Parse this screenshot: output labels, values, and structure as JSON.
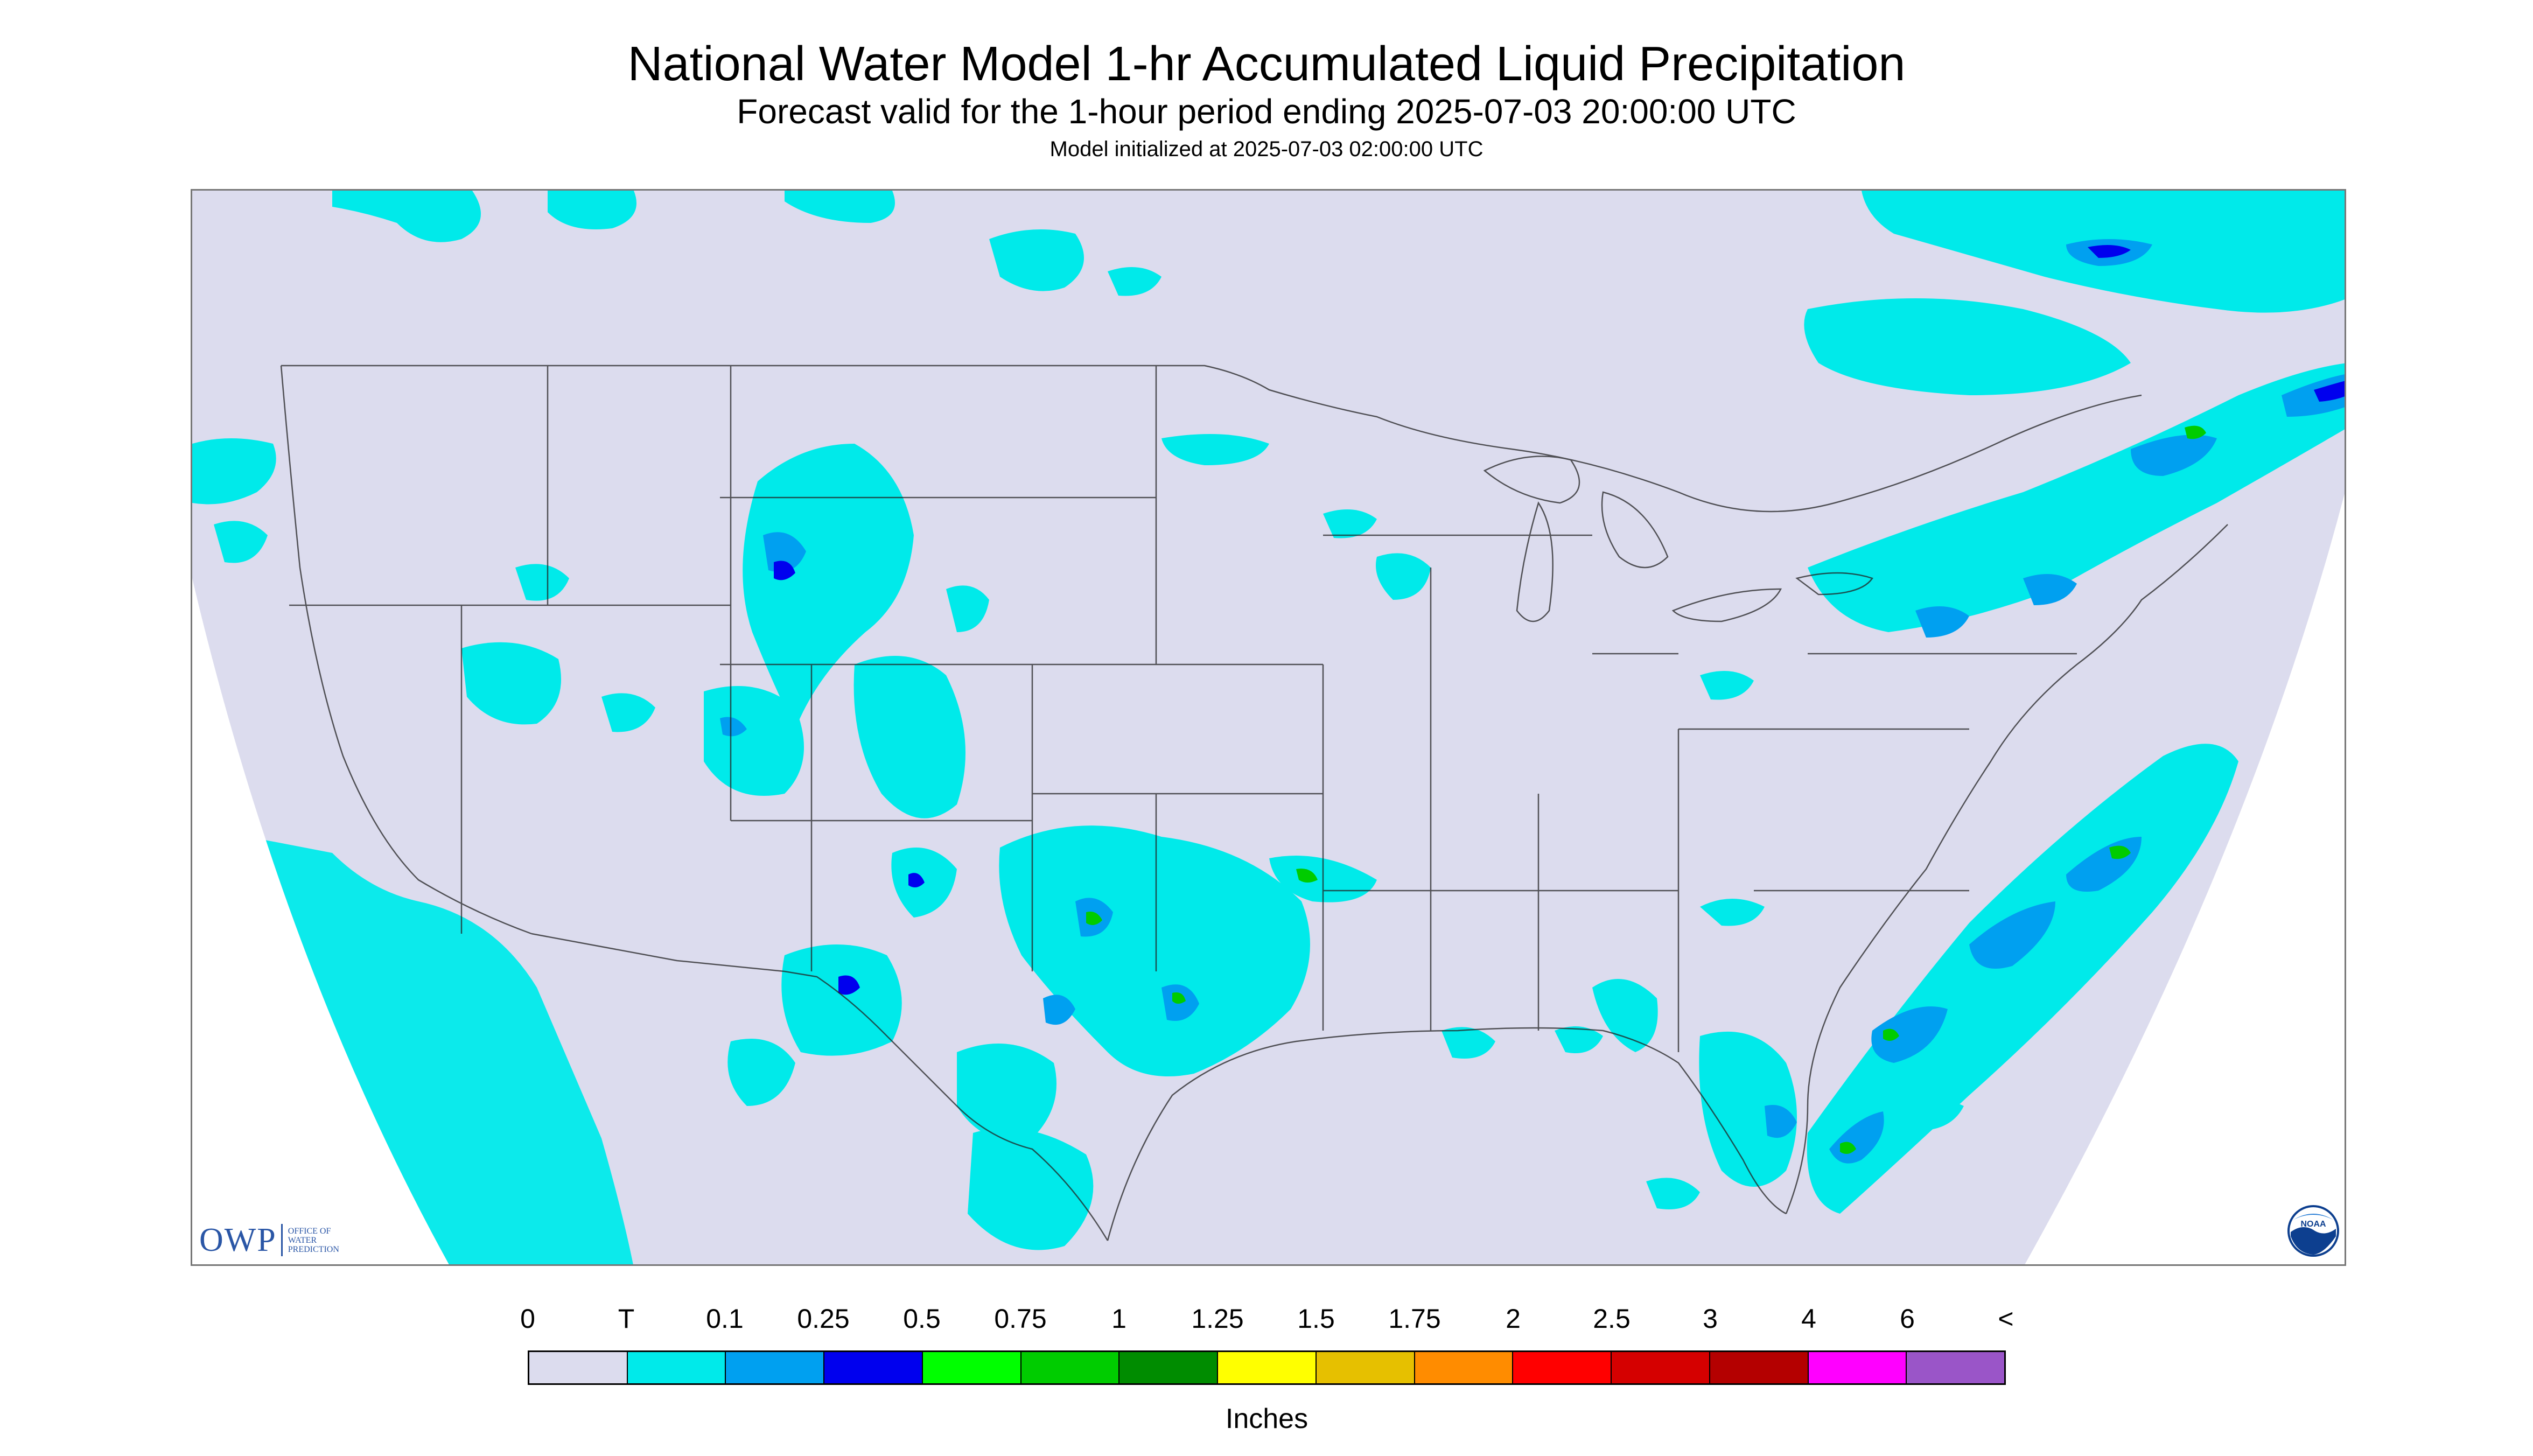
{
  "header": {
    "title": "National Water Model 1-hr Accumulated Liquid Precipitation",
    "subtitle": "Forecast valid for the 1-hour period ending 2025-07-03 20:00:00 UTC",
    "init_line": "Model initialized at 2025-07-03 02:00:00 UTC"
  },
  "legend": {
    "tick_labels": [
      "0",
      "T",
      "0.1",
      "0.25",
      "0.5",
      "0.75",
      "1",
      "1.25",
      "1.5",
      "1.75",
      "2",
      "2.5",
      "3",
      "4",
      "6",
      "<"
    ],
    "colors": [
      "#dcdcee",
      "#00eaea",
      "#00a0f0",
      "#0000ee",
      "#00ff00",
      "#00cc00",
      "#008c00",
      "#ffff00",
      "#e6c000",
      "#ff8c00",
      "#ff0000",
      "#d50000",
      "#b40000",
      "#ff00ff",
      "#9a55c8"
    ],
    "units": "Inches"
  },
  "logos": {
    "owp_mark": "OWP",
    "owp_text": [
      "OFFICE OF",
      "WATER",
      "PREDICTION"
    ],
    "noaa_text": "NOAA"
  },
  "colors": {
    "background_no_precip": "#dcdcee",
    "trace": "#00eaea",
    "light": "#00a0f0",
    "moderate": "#0000ee",
    "heavy": "#00cc00"
  }
}
